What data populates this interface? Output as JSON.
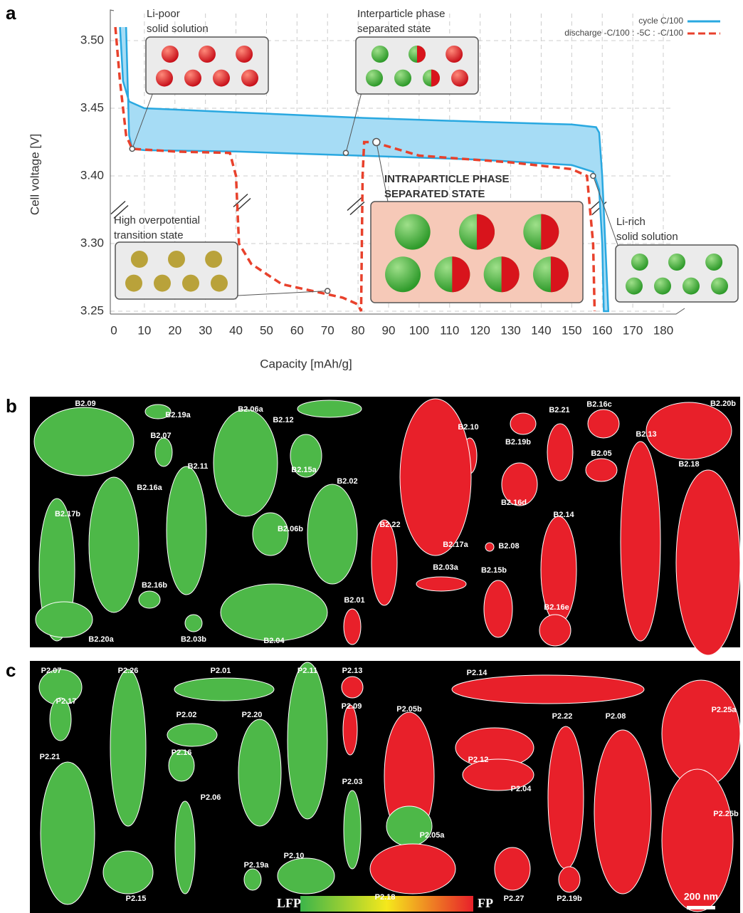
{
  "chart_data": {
    "type": "line",
    "panel_label": "a",
    "xlabel": "Capacity [mAh/g]",
    "ylabel": "Cell voltage [V]",
    "xlim": [
      0,
      185
    ],
    "xticks": [
      0,
      10,
      20,
      30,
      40,
      50,
      60,
      70,
      80,
      90,
      100,
      110,
      120,
      130,
      140,
      150,
      160,
      170,
      180
    ],
    "ylim": [
      3.25,
      3.52
    ],
    "yticks": [
      3.25,
      {
        "value": 3.3,
        "label": "3.30"
      },
      {
        "value": 3.4,
        "label": "3.40"
      },
      3.45,
      {
        "value": 3.5,
        "label": "3.50"
      }
    ],
    "grid": true,
    "legend": "upper right",
    "series": [
      {
        "name": "cycle C/100",
        "color": "#29a8e0",
        "style": "solid",
        "fill": "#a6dcf5",
        "x": [
          4,
          5,
          6,
          10,
          40,
          80,
          120,
          150,
          157,
          159,
          160,
          160.5,
          162,
          161,
          160,
          159,
          158,
          150,
          120,
          80,
          40,
          10,
          5,
          3,
          2
        ],
        "values": [
          3.51,
          3.43,
          3.42,
          3.419,
          3.418,
          3.415,
          3.412,
          3.408,
          3.403,
          3.38,
          3.3,
          3.25,
          3.25,
          3.3,
          3.4,
          3.432,
          3.436,
          3.438,
          3.44,
          3.443,
          3.447,
          3.45,
          3.455,
          3.47,
          3.51
        ]
      },
      {
        "name": "discharge -C/100 : -5C : -C/100",
        "color": "#e8412c",
        "style": "dashed",
        "x": [
          0.5,
          2,
          4,
          6,
          20,
          38,
          40,
          41,
          45,
          55,
          65,
          75,
          80,
          81,
          81.5,
          82,
          85,
          100,
          130,
          150,
          155,
          157,
          157.5
        ],
        "values": [
          3.51,
          3.47,
          3.43,
          3.42,
          3.418,
          3.417,
          3.4,
          3.3,
          3.285,
          3.27,
          3.265,
          3.26,
          3.255,
          3.25,
          3.4,
          3.425,
          3.425,
          3.415,
          3.41,
          3.405,
          3.4,
          3.3,
          3.25
        ]
      }
    ],
    "annotations": [
      {
        "text": [
          "Li-poor",
          "solid solution"
        ],
        "x": 6,
        "y": 3.42
      },
      {
        "text": [
          "Interparticle phase",
          "separated state"
        ],
        "x": 76,
        "y": 3.417
      },
      {
        "text": [
          "INTRAPARTICLE PHASE",
          "SEPARATED STATE"
        ],
        "x": 86,
        "y": 3.425
      },
      {
        "text": [
          "High overpotential",
          "transition state"
        ],
        "x": 70,
        "y": 3.265
      },
      {
        "text": [
          "Li-rich",
          "solid solution"
        ],
        "x": 157,
        "y": 3.4
      }
    ]
  },
  "panels": {
    "b": {
      "letter": "b",
      "labels": [
        "B2.09",
        "B2.19a",
        "B2.07",
        "B2.06a",
        "B2.12",
        "B2.11",
        "B2.16a",
        "B2.17b",
        "B2.15a",
        "B2.02",
        "B2.06b",
        "B2.16b",
        "B2.20a",
        "B2.03b",
        "B2.04",
        "B2.22",
        "B2.01",
        "B2.10",
        "B2.19b",
        "B2.17a",
        "B2.16d",
        "B2.03a",
        "B2.08",
        "B2.15b",
        "B2.21",
        "B2.16c",
        "B2.05",
        "B2.13",
        "B2.14",
        "B2.16e",
        "B2.20b",
        "B2.18"
      ]
    },
    "c": {
      "letter": "c",
      "labels": [
        "P2.07",
        "P2.26",
        "P2.01",
        "P2.11",
        "P2.13",
        "P2.17",
        "P2.02",
        "P2.20",
        "P2.09",
        "P2.05b",
        "P2.14",
        "P2.25a",
        "P2.22",
        "P2.08",
        "P2.12",
        "P2.16",
        "P2.21",
        "P2.06",
        "P2.03",
        "P2.04",
        "P2.05a",
        "P2.25b",
        "P2.19a",
        "P2.10",
        "P2.15",
        "P2.18",
        "P2.27",
        "P2.19b"
      ],
      "colorbar": {
        "min_label": "LFP",
        "max_label": "FP"
      },
      "scale_bar": "200 nm"
    }
  }
}
